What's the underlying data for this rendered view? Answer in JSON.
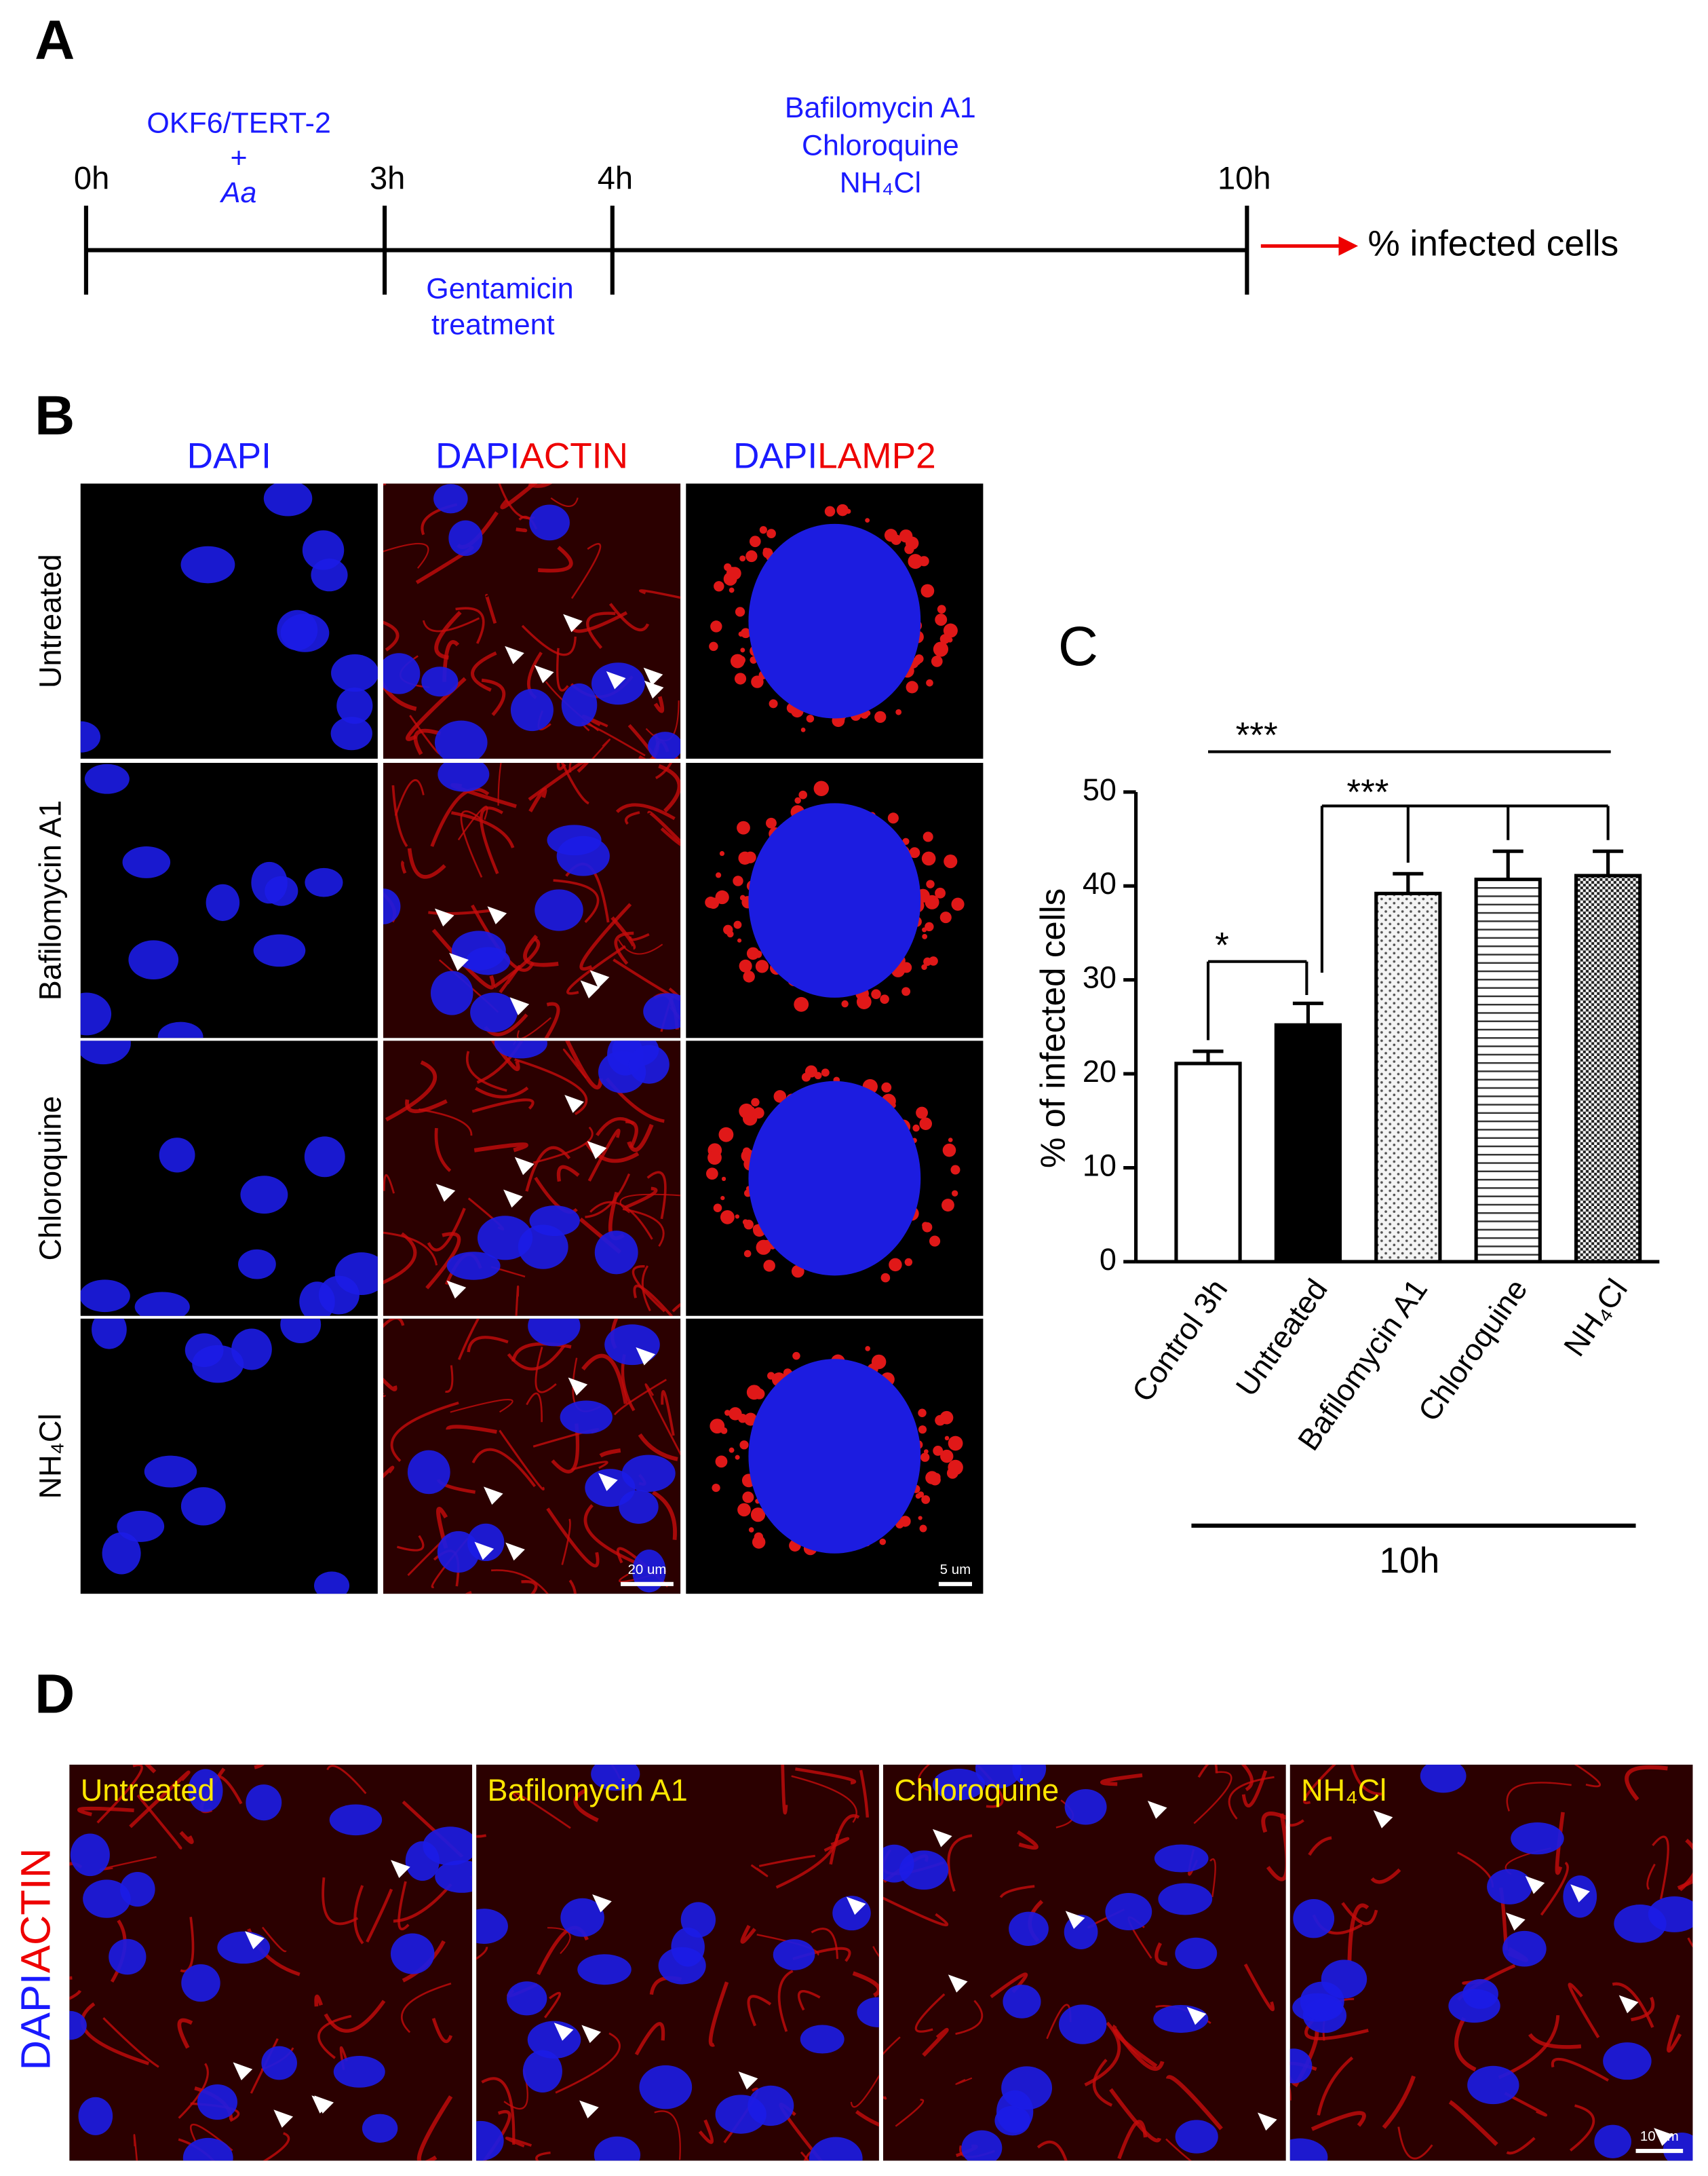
{
  "panel_labels": [
    "A",
    "B",
    "C",
    "D"
  ],
  "timeline": {
    "times": [
      "0h",
      "3h",
      "4h",
      "10h"
    ],
    "infection": [
      "OKF6/TERT-2",
      "+",
      "Aa"
    ],
    "gentamicin": [
      "Gentamicin",
      "treatment"
    ],
    "drugs": [
      "Bafilomycin A1",
      "Chloroquine",
      "NH₄Cl"
    ],
    "readout": "% infected cells"
  },
  "microscopy": {
    "columns": [
      [
        "DAPI"
      ],
      [
        "DAPI",
        "ACTIN"
      ],
      [
        "DAPI",
        "LAMP2"
      ]
    ],
    "rows": [
      "Untreated",
      "Bafilomycin A1",
      "Chloroquine",
      "NH₄Cl"
    ],
    "scale_bars": [
      "20 um",
      "5 um"
    ]
  },
  "chart_data": {
    "type": "bar",
    "y_label": "% of infected cells",
    "categories": [
      "Control 3h",
      "Untreated",
      "Bafilomycin A1",
      "Chloroquine",
      "NH₄Cl"
    ],
    "values": [
      21.1,
      25.2,
      39.2,
      40.7,
      41.1
    ],
    "errors": [
      1.3,
      2.3,
      2.1,
      3.0,
      2.6
    ],
    "patterns": [
      "white",
      "black",
      "dots",
      "hlines",
      "checker"
    ],
    "ylim": [
      0,
      50
    ],
    "yticks": [
      0,
      10,
      20,
      30,
      40,
      50
    ],
    "annotations": [
      "*",
      "***",
      "***"
    ],
    "group_label": "10h"
  },
  "panel_d": {
    "side_label": [
      "DAPI",
      "ACTIN"
    ],
    "panels": [
      "Untreated",
      "Bafilomycin A1",
      "Chloroquine",
      "NH₄Cl"
    ],
    "scale_bar": "10 um"
  }
}
